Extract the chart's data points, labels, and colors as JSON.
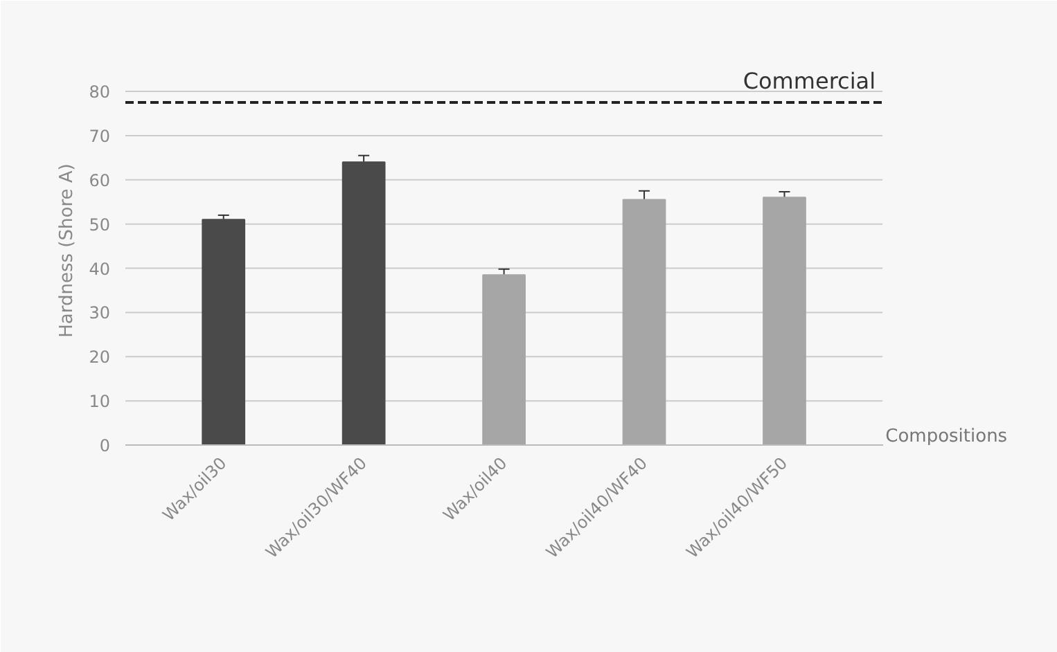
{
  "chart_data": {
    "type": "bar",
    "ylabel": "Hardness (Shore A)",
    "xlabel": "Compositions",
    "categories": [
      "Wax/oil30",
      "Wax/oil30/WF40",
      "Wax/oil40",
      "Wax/oil40/WF40",
      "Wax/oil40/WF50"
    ],
    "values": [
      51,
      64,
      38.5,
      55.5,
      56
    ],
    "errors": [
      1,
      1.5,
      1.3,
      2,
      1.3
    ],
    "colors": [
      "#4a4a4a",
      "#4a4a4a",
      "#a6a6a6",
      "#a6a6a6",
      "#a6a6a6"
    ],
    "ylim": [
      0,
      88
    ],
    "yticks": [
      0,
      10,
      20,
      30,
      40,
      50,
      60,
      70,
      80
    ],
    "grid": "y",
    "ref_lines": [
      {
        "axis": "y",
        "value": 77.5,
        "label": "Commercial",
        "color": "#222222",
        "line_style": "dashed"
      }
    ]
  }
}
